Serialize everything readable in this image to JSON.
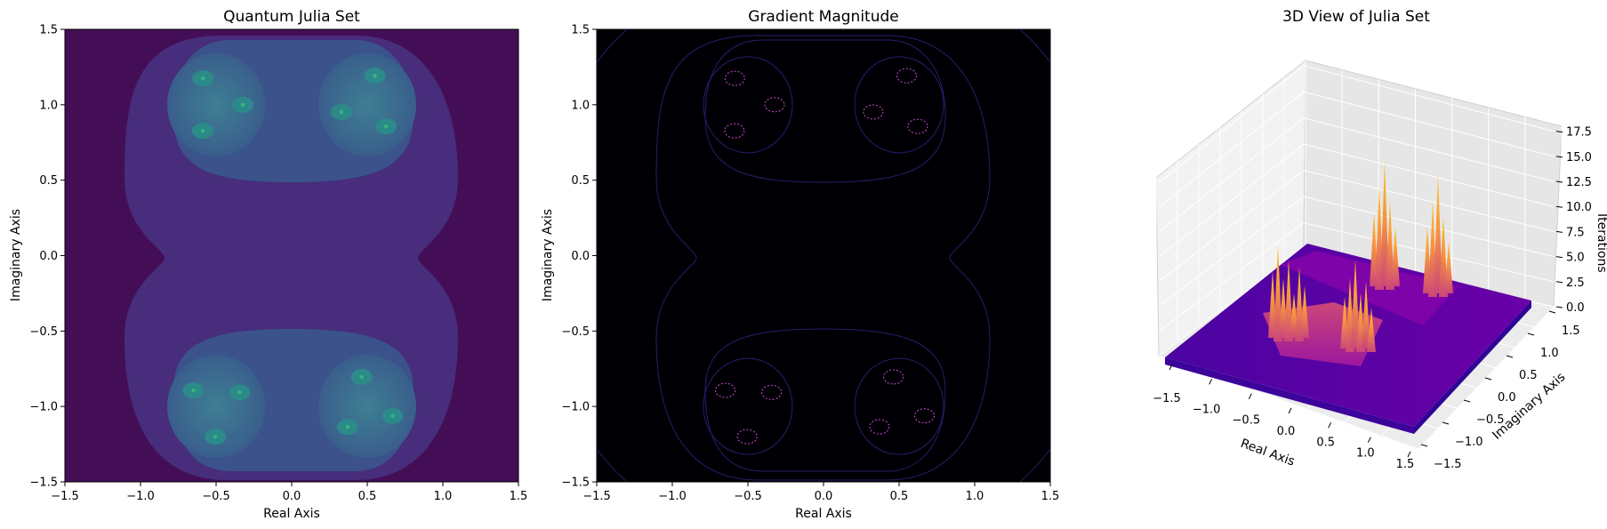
{
  "chart_data": [
    {
      "type": "heatmap",
      "title": "Quantum Julia Set",
      "xlabel": "Real Axis",
      "ylabel": "Imaginary Axis",
      "xlim": [
        -1.5,
        1.5
      ],
      "ylim": [
        -1.5,
        1.5
      ],
      "xticks": [
        "−1.5",
        "−1.0",
        "−0.5",
        "0.0",
        "0.5",
        "1.0",
        "1.5"
      ],
      "yticks": [
        "−1.5",
        "−1.0",
        "−0.5",
        "0.0",
        "0.5",
        "1.0",
        "1.5"
      ],
      "colormap": "viridis",
      "colors": {
        "outer": "#440e57",
        "band1": "#472d7b",
        "band2": "#3b528b",
        "band3": "#2c728e",
        "center": "#35b779"
      },
      "fractal_bulbs": [
        {
          "x": -0.5,
          "y": 1.0
        },
        {
          "x": 0.5,
          "y": 1.0
        },
        {
          "x": -0.5,
          "y": -1.0
        },
        {
          "x": 0.5,
          "y": -1.0
        }
      ]
    },
    {
      "type": "heatmap",
      "title": "Gradient Magnitude",
      "xlabel": "Real Axis",
      "ylabel": "Imaginary Axis",
      "xlim": [
        -1.5,
        1.5
      ],
      "ylim": [
        -1.5,
        1.5
      ],
      "xticks": [
        "−1.5",
        "−1.0",
        "−0.5",
        "0.0",
        "0.5",
        "1.0",
        "1.5"
      ],
      "yticks": [
        "−1.5",
        "−1.0",
        "−0.5",
        "0.0",
        "0.5",
        "1.0",
        "1.5"
      ],
      "colormap": "magma",
      "colors": {
        "background": "#000004",
        "contour": "#2b1b6e",
        "highlight": "#c94fd8"
      }
    },
    {
      "type": "surface",
      "title": "3D View of Julia Set",
      "xlabel": "Real Axis",
      "ylabel": "Imaginary Axis",
      "zlabel": "Iterations",
      "xticks": [
        "−1.5",
        "−1.0",
        "−0.5",
        "0.0",
        "0.5",
        "1.0",
        "1.5"
      ],
      "yticks": [
        "−1.5",
        "−1.0",
        "−0.5",
        "0.0",
        "0.5",
        "1.0",
        "1.5"
      ],
      "zticks": [
        "0.0",
        "2.5",
        "5.0",
        "7.5",
        "10.0",
        "12.5",
        "15.0",
        "17.5"
      ],
      "zlim": [
        0,
        18
      ],
      "colormap": "plasma",
      "colors": {
        "base": "#5a0fc8",
        "mid": "#cc4778",
        "peak": "#fdc328"
      }
    }
  ]
}
